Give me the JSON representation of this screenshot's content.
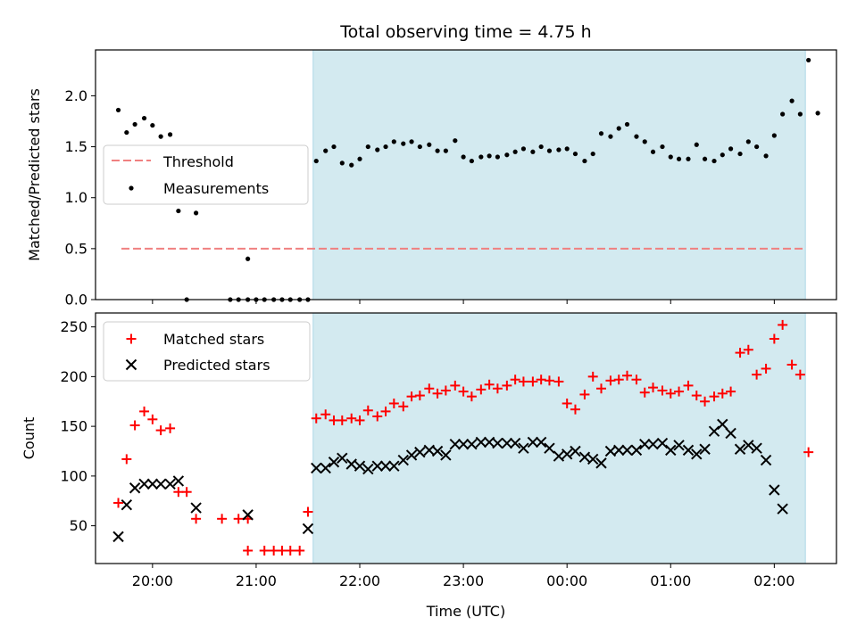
{
  "chart_data": [
    {
      "type": "scatter",
      "title": "Total observing time = 4.75 h",
      "ylabel": "Matched/Predicted stars",
      "ylim": [
        0,
        2.45
      ],
      "yticks": [
        0,
        0.5,
        1.0,
        1.5,
        2.0
      ],
      "yticklabels": [
        "0.0",
        "0.5",
        "1.0",
        "1.5",
        "2.0"
      ],
      "highlight_span": {
        "start_hour": 21.55,
        "end_hour": 26.3,
        "color": "#d3eaf0"
      },
      "legend": {
        "placement": "center-left",
        "entries": [
          "Threshold",
          "Measurements"
        ]
      },
      "threshold": {
        "name": "Threshold",
        "value": 0.5,
        "x_start_hour": 19.7,
        "x_end_hour": 26.3,
        "color": "#f08080"
      },
      "series": [
        {
          "name": "Measurements",
          "color": "#000000",
          "points": [
            [
              19.67,
              1.86
            ],
            [
              19.75,
              1.64
            ],
            [
              19.83,
              1.72
            ],
            [
              19.92,
              1.78
            ],
            [
              20.0,
              1.71
            ],
            [
              20.08,
              1.6
            ],
            [
              20.17,
              1.62
            ],
            [
              20.25,
              0.87
            ],
            [
              20.33,
              0.0
            ],
            [
              20.42,
              0.85
            ],
            [
              20.75,
              0.0
            ],
            [
              20.83,
              0.0
            ],
            [
              20.92,
              0.0
            ],
            [
              20.92,
              0.4
            ],
            [
              21.0,
              0.0
            ],
            [
              21.08,
              0.0
            ],
            [
              21.17,
              0.0
            ],
            [
              21.25,
              0.0
            ],
            [
              21.33,
              0.0
            ],
            [
              21.42,
              0.0
            ],
            [
              21.5,
              0.0
            ],
            [
              21.58,
              1.36
            ],
            [
              21.67,
              1.46
            ],
            [
              21.75,
              1.5
            ],
            [
              21.83,
              1.34
            ],
            [
              21.92,
              1.32
            ],
            [
              22.0,
              1.38
            ],
            [
              22.08,
              1.5
            ],
            [
              22.17,
              1.47
            ],
            [
              22.25,
              1.5
            ],
            [
              22.33,
              1.55
            ],
            [
              22.42,
              1.53
            ],
            [
              22.5,
              1.55
            ],
            [
              22.58,
              1.5
            ],
            [
              22.67,
              1.52
            ],
            [
              22.75,
              1.46
            ],
            [
              22.83,
              1.46
            ],
            [
              22.92,
              1.56
            ],
            [
              23.0,
              1.4
            ],
            [
              23.08,
              1.36
            ],
            [
              23.17,
              1.4
            ],
            [
              23.25,
              1.41
            ],
            [
              23.33,
              1.4
            ],
            [
              23.42,
              1.42
            ],
            [
              23.5,
              1.45
            ],
            [
              23.58,
              1.48
            ],
            [
              23.67,
              1.45
            ],
            [
              23.75,
              1.5
            ],
            [
              23.83,
              1.46
            ],
            [
              23.92,
              1.47
            ],
            [
              24.0,
              1.48
            ],
            [
              24.08,
              1.43
            ],
            [
              24.17,
              1.36
            ],
            [
              24.25,
              1.43
            ],
            [
              24.33,
              1.63
            ],
            [
              24.42,
              1.6
            ],
            [
              24.5,
              1.68
            ],
            [
              24.58,
              1.72
            ],
            [
              24.67,
              1.6
            ],
            [
              24.75,
              1.55
            ],
            [
              24.83,
              1.45
            ],
            [
              24.92,
              1.5
            ],
            [
              25.0,
              1.4
            ],
            [
              25.08,
              1.38
            ],
            [
              25.17,
              1.38
            ],
            [
              25.25,
              1.52
            ],
            [
              25.33,
              1.38
            ],
            [
              25.42,
              1.36
            ],
            [
              25.5,
              1.42
            ],
            [
              25.58,
              1.48
            ],
            [
              25.67,
              1.43
            ],
            [
              25.75,
              1.55
            ],
            [
              25.83,
              1.5
            ],
            [
              25.92,
              1.41
            ],
            [
              26.0,
              1.61
            ],
            [
              26.08,
              1.82
            ],
            [
              26.17,
              1.95
            ],
            [
              26.25,
              1.82
            ],
            [
              26.33,
              2.35
            ],
            [
              26.42,
              1.83
            ]
          ]
        }
      ]
    },
    {
      "type": "scatter",
      "xlabel": "Time (UTC)",
      "ylabel": "Count",
      "ylim": [
        12,
        264
      ],
      "yticks": [
        50,
        100,
        150,
        200,
        250
      ],
      "yticklabels": [
        "50",
        "100",
        "150",
        "200",
        "250"
      ],
      "xlim_hours": [
        19.45,
        26.6
      ],
      "xticks_hours": [
        20,
        21,
        22,
        23,
        24,
        25,
        26
      ],
      "xticklabels": [
        "20:00",
        "21:00",
        "22:00",
        "23:00",
        "00:00",
        "01:00",
        "02:00"
      ],
      "highlight_span": {
        "start_hour": 21.55,
        "end_hour": 26.3,
        "color": "#d3eaf0"
      },
      "legend": {
        "placement": "top-left",
        "entries": [
          "Matched stars",
          "Predicted stars"
        ]
      },
      "series": [
        {
          "name": "Matched stars",
          "marker": "plus",
          "color": "#ff0000",
          "points": [
            [
              19.67,
              73
            ],
            [
              19.75,
              117
            ],
            [
              19.83,
              151
            ],
            [
              19.92,
              165
            ],
            [
              20.0,
              157
            ],
            [
              20.08,
              146
            ],
            [
              20.17,
              148
            ],
            [
              20.25,
              84
            ],
            [
              20.33,
              84
            ],
            [
              20.42,
              57
            ],
            [
              20.67,
              57
            ],
            [
              20.83,
              57
            ],
            [
              20.92,
              57
            ],
            [
              20.92,
              25
            ],
            [
              21.08,
              25
            ],
            [
              21.17,
              25
            ],
            [
              21.25,
              25
            ],
            [
              21.33,
              25
            ],
            [
              21.42,
              25
            ],
            [
              21.5,
              64
            ],
            [
              21.58,
              158
            ],
            [
              21.67,
              162
            ],
            [
              21.75,
              156
            ],
            [
              21.83,
              156
            ],
            [
              21.92,
              158
            ],
            [
              22.0,
              156
            ],
            [
              22.08,
              166
            ],
            [
              22.17,
              160
            ],
            [
              22.25,
              165
            ],
            [
              22.33,
              173
            ],
            [
              22.42,
              170
            ],
            [
              22.5,
              180
            ],
            [
              22.58,
              181
            ],
            [
              22.67,
              188
            ],
            [
              22.75,
              183
            ],
            [
              22.83,
              186
            ],
            [
              22.92,
              191
            ],
            [
              23.0,
              185
            ],
            [
              23.08,
              180
            ],
            [
              23.17,
              187
            ],
            [
              23.25,
              192
            ],
            [
              23.33,
              188
            ],
            [
              23.42,
              191
            ],
            [
              23.5,
              197
            ],
            [
              23.58,
              195
            ],
            [
              23.67,
              195
            ],
            [
              23.75,
              197
            ],
            [
              23.83,
              196
            ],
            [
              23.92,
              195
            ],
            [
              24.0,
              173
            ],
            [
              24.08,
              167
            ],
            [
              24.17,
              182
            ],
            [
              24.25,
              200
            ],
            [
              24.33,
              188
            ],
            [
              24.42,
              196
            ],
            [
              24.5,
              197
            ],
            [
              24.58,
              201
            ],
            [
              24.67,
              197
            ],
            [
              24.75,
              184
            ],
            [
              24.83,
              189
            ],
            [
              24.92,
              186
            ],
            [
              25.0,
              183
            ],
            [
              25.08,
              185
            ],
            [
              25.17,
              191
            ],
            [
              25.25,
              181
            ],
            [
              25.33,
              175
            ],
            [
              25.42,
              180
            ],
            [
              25.5,
              183
            ],
            [
              25.58,
              185
            ],
            [
              25.67,
              224
            ],
            [
              25.75,
              227
            ],
            [
              25.83,
              202
            ],
            [
              25.92,
              208
            ],
            [
              26.0,
              238
            ],
            [
              26.08,
              252
            ],
            [
              26.17,
              212
            ],
            [
              26.25,
              202
            ],
            [
              26.33,
              124
            ]
          ]
        },
        {
          "name": "Predicted stars",
          "marker": "x",
          "color": "#000000",
          "points": [
            [
              19.67,
              39
            ],
            [
              19.75,
              71
            ],
            [
              19.83,
              88
            ],
            [
              19.92,
              92
            ],
            [
              20.0,
              92
            ],
            [
              20.08,
              92
            ],
            [
              20.17,
              92
            ],
            [
              20.25,
              95
            ],
            [
              20.42,
              68
            ],
            [
              20.92,
              61
            ],
            [
              21.5,
              47
            ],
            [
              21.58,
              108
            ],
            [
              21.67,
              108
            ],
            [
              21.75,
              114
            ],
            [
              21.83,
              118
            ],
            [
              21.92,
              112
            ],
            [
              22.0,
              110
            ],
            [
              22.08,
              107
            ],
            [
              22.17,
              110
            ],
            [
              22.25,
              110
            ],
            [
              22.33,
              110
            ],
            [
              22.42,
              116
            ],
            [
              22.5,
              121
            ],
            [
              22.58,
              124
            ],
            [
              22.67,
              126
            ],
            [
              22.75,
              125
            ],
            [
              22.83,
              121
            ],
            [
              22.92,
              132
            ],
            [
              23.0,
              132
            ],
            [
              23.08,
              132
            ],
            [
              23.17,
              134
            ],
            [
              23.25,
              134
            ],
            [
              23.33,
              133
            ],
            [
              23.42,
              133
            ],
            [
              23.5,
              133
            ],
            [
              23.58,
              128
            ],
            [
              23.67,
              134
            ],
            [
              23.75,
              134
            ],
            [
              23.83,
              128
            ],
            [
              23.92,
              120
            ],
            [
              24.0,
              122
            ],
            [
              24.08,
              125
            ],
            [
              24.17,
              119
            ],
            [
              24.25,
              117
            ],
            [
              24.33,
              113
            ],
            [
              24.42,
              125
            ],
            [
              24.5,
              126
            ],
            [
              24.58,
              126
            ],
            [
              24.67,
              126
            ],
            [
              24.75,
              132
            ],
            [
              24.83,
              132
            ],
            [
              24.92,
              133
            ],
            [
              25.0,
              126
            ],
            [
              25.08,
              131
            ],
            [
              25.17,
              126
            ],
            [
              25.25,
              122
            ],
            [
              25.33,
              127
            ],
            [
              25.42,
              145
            ],
            [
              25.5,
              152
            ],
            [
              25.58,
              143
            ],
            [
              25.67,
              127
            ],
            [
              25.75,
              131
            ],
            [
              25.83,
              128
            ],
            [
              25.92,
              116
            ],
            [
              26.0,
              86
            ],
            [
              26.08,
              67
            ]
          ]
        }
      ]
    }
  ]
}
